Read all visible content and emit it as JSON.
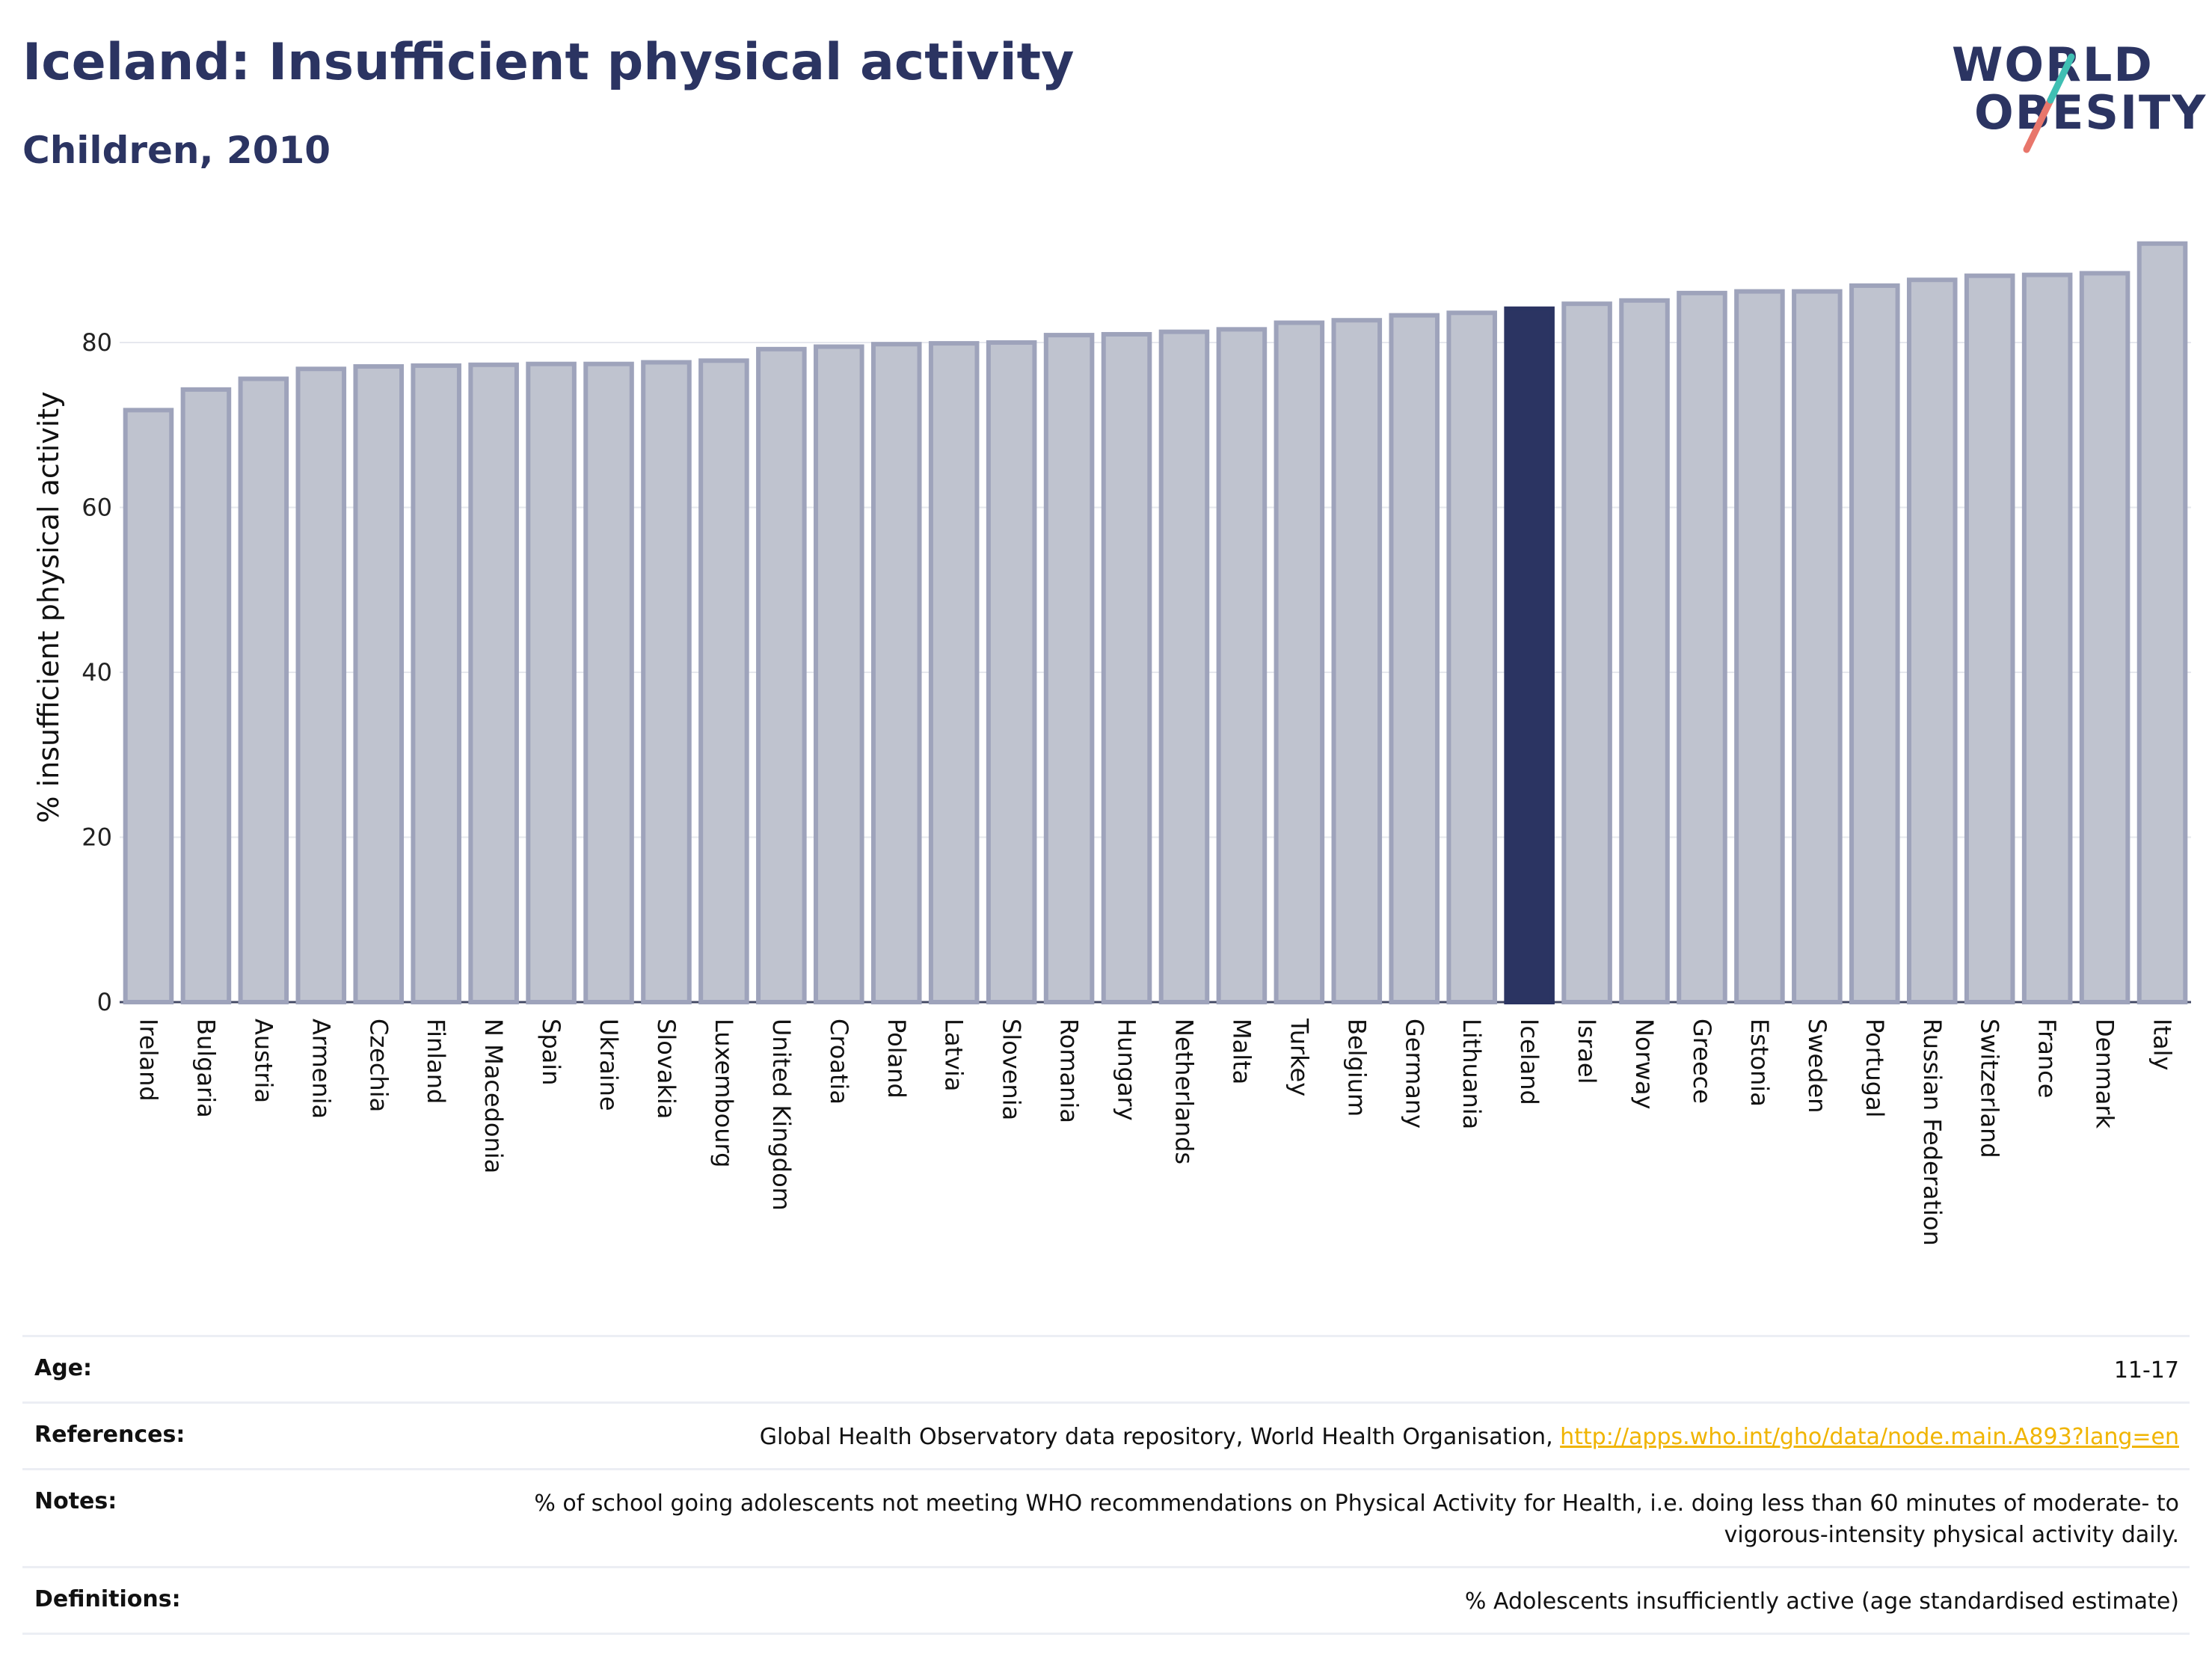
{
  "header": {
    "title": "Iceland: Insufficient physical activity",
    "subtitle": "Children, 2010",
    "logo_line1": "WORLD",
    "logo_line2": "OBESITY"
  },
  "colors": {
    "bar_default": "#bfc3cf",
    "bar_default_stroke": "#9ea3bb",
    "bar_highlight": "#2b3462",
    "title": "#2b3462",
    "link": "#f0b400",
    "logo_teal": "#3fbfb3",
    "logo_coral": "#e8766b"
  },
  "chart_data": {
    "type": "bar",
    "title": "Iceland: Insufficient physical activity",
    "subtitle": "Children, 2010",
    "xlabel": "",
    "ylabel": "% insufficient physical activity",
    "ylim": [
      0,
      93
    ],
    "yticks": [
      0,
      20,
      40,
      60,
      80
    ],
    "grid": true,
    "highlight": "Iceland",
    "categories": [
      "Ireland",
      "Bulgaria",
      "Austria",
      "Armenia",
      "Czechia",
      "Finland",
      "N Macedonia",
      "Spain",
      "Ukraine",
      "Slovakia",
      "Luxembourg",
      "United Kingdom",
      "Croatia",
      "Poland",
      "Latvia",
      "Slovenia",
      "Romania",
      "Hungary",
      "Netherlands",
      "Malta",
      "Turkey",
      "Belgium",
      "Germany",
      "Lithuania",
      "Iceland",
      "Israel",
      "Norway",
      "Greece",
      "Estonia",
      "Sweden",
      "Portugal",
      "Russian Federation",
      "Switzerland",
      "France",
      "Denmark",
      "Italy"
    ],
    "values": [
      71.8,
      74.3,
      75.6,
      76.8,
      77.1,
      77.2,
      77.3,
      77.4,
      77.4,
      77.6,
      77.8,
      79.2,
      79.5,
      79.8,
      79.9,
      80.0,
      80.9,
      81.0,
      81.3,
      81.6,
      82.4,
      82.7,
      83.3,
      83.6,
      84.1,
      84.7,
      85.1,
      86.0,
      86.2,
      86.2,
      86.9,
      87.6,
      88.1,
      88.2,
      88.4,
      92.0
    ]
  },
  "meta": [
    {
      "key": "Age:",
      "value": "11-17"
    },
    {
      "key": "References:",
      "value": "Global Health Observatory data repository, World Health Organisation, ",
      "link": "http://apps.who.int/gho/data/node.main.A893?lang=en"
    },
    {
      "key": "Notes:",
      "value": "% of school going adolescents not meeting WHO recommendations on Physical Activity for Health, i.e. doing less than 60 minutes of moderate- to vigorous-intensity physical activity daily."
    },
    {
      "key": "Definitions:",
      "value": "% Adolescents insufficiently active (age standardised estimate)"
    }
  ]
}
